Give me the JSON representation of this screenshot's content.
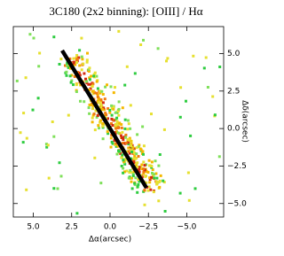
{
  "chart_data": {
    "type": "image",
    "title": "3C180 (2x2 binning): [OIII] / Hα",
    "x_label": "Δα(arcsec)",
    "y_label": "Δδ(arcsec)",
    "xlim": [
      6.3,
      -7.4
    ],
    "ylim": [
      -5.9,
      6.8
    ],
    "xticks": [
      {
        "value": 5,
        "label": "5.0"
      },
      {
        "value": 2.5,
        "label": "2.5"
      },
      {
        "value": 0,
        "label": "0.0"
      },
      {
        "value": -2.5,
        "label": "−2.5"
      },
      {
        "value": -5,
        "label": "−5.0"
      }
    ],
    "yticks": [
      {
        "value": 5,
        "label": "5.0"
      },
      {
        "value": 2.5,
        "label": "2.5"
      },
      {
        "value": 0,
        "label": "0.0"
      },
      {
        "value": -2.5,
        "label": "−2.5"
      },
      {
        "value": -5,
        "label": "−5.0"
      }
    ]
  }
}
